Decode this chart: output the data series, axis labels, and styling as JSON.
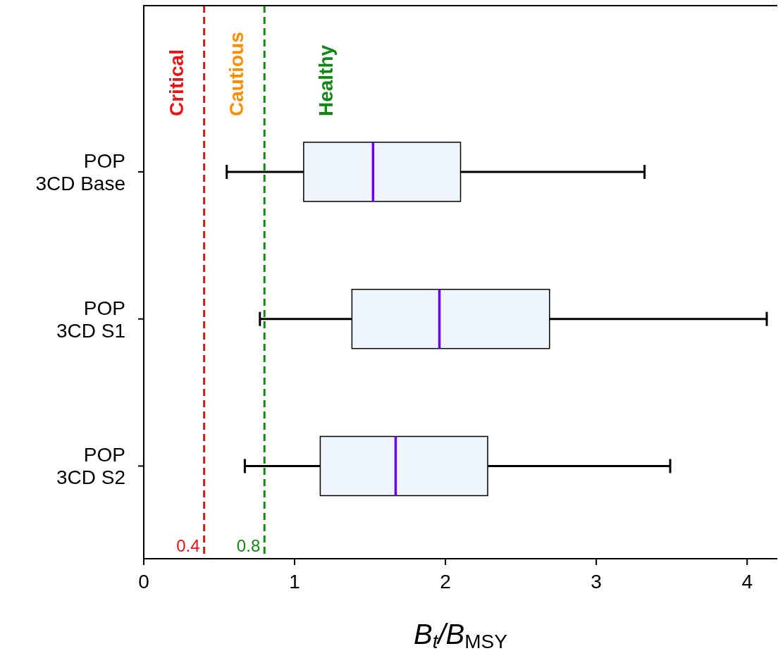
{
  "chart_data": {
    "type": "box",
    "orientation": "horizontal",
    "xlabel": "B$_{t}$/B$_{MSY}$",
    "categories": [
      "POP\n3CD Base",
      "POP\n3CD S1",
      "POP\n3CD S2"
    ],
    "boxes": [
      {
        "low": 0.55,
        "q1": 1.06,
        "median": 1.52,
        "q3": 2.1,
        "high": 3.32
      },
      {
        "low": 0.77,
        "q1": 1.38,
        "median": 1.96,
        "q3": 2.69,
        "high": 4.13
      },
      {
        "low": 0.67,
        "q1": 1.17,
        "median": 1.67,
        "q3": 2.28,
        "high": 3.49
      }
    ],
    "xlim": [
      0,
      4.2
    ],
    "xticks": [
      0,
      1,
      2,
      3,
      4
    ],
    "ref_lines": [
      {
        "axis": "x",
        "value": 0.4,
        "label": "0.4",
        "color": "#ee1111",
        "line_style": "dashed"
      },
      {
        "axis": "x",
        "value": 0.8,
        "label": "0.8",
        "color": "#118811",
        "line_style": "dashed"
      }
    ],
    "annotations": [
      "Critical",
      "Cautious",
      "Healthy"
    ]
  }
}
